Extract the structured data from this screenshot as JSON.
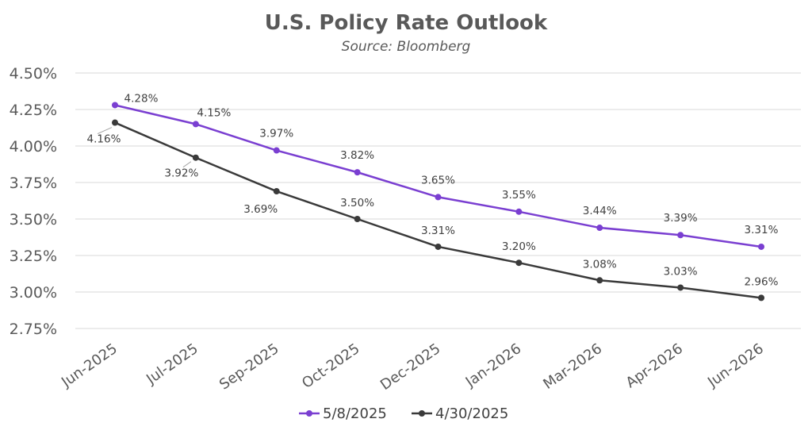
{
  "chart_data": {
    "type": "line",
    "title": "U.S. Policy Rate Outlook",
    "subtitle": "Source: Bloomberg",
    "xlabel": "",
    "ylabel": "",
    "categories": [
      "Jun-2025",
      "Jul-2025",
      "Sep-2025",
      "Oct-2025",
      "Dec-2025",
      "Jan-2026",
      "Mar-2026",
      "Apr-2026",
      "Jun-2026"
    ],
    "ylim": [
      2.75,
      4.5
    ],
    "yticks": [
      2.75,
      3.0,
      3.25,
      3.5,
      3.75,
      4.0,
      4.25,
      4.5
    ],
    "ytick_labels": [
      "2.75%",
      "3.00%",
      "3.25%",
      "3.50%",
      "3.75%",
      "4.00%",
      "4.25%",
      "4.50%"
    ],
    "grid": true,
    "legend_position": "bottom",
    "series": [
      {
        "name": "5/8/2025",
        "color": "#7a3fd1",
        "values": [
          4.28,
          4.15,
          3.97,
          3.82,
          3.65,
          3.55,
          3.44,
          3.39,
          3.31
        ],
        "labels": [
          "4.28%",
          "4.15%",
          "3.97%",
          "3.82%",
          "3.65%",
          "3.55%",
          "3.44%",
          "3.39%",
          "3.31%"
        ]
      },
      {
        "name": "4/30/2025",
        "color": "#3a3a3a",
        "values": [
          4.16,
          3.92,
          3.69,
          3.5,
          3.31,
          3.2,
          3.08,
          3.03,
          2.96
        ],
        "labels": [
          "4.16%",
          "3.92%",
          "3.69%",
          "3.50%",
          "3.31%",
          "3.20%",
          "3.08%",
          "3.03%",
          "2.96%"
        ]
      }
    ]
  }
}
